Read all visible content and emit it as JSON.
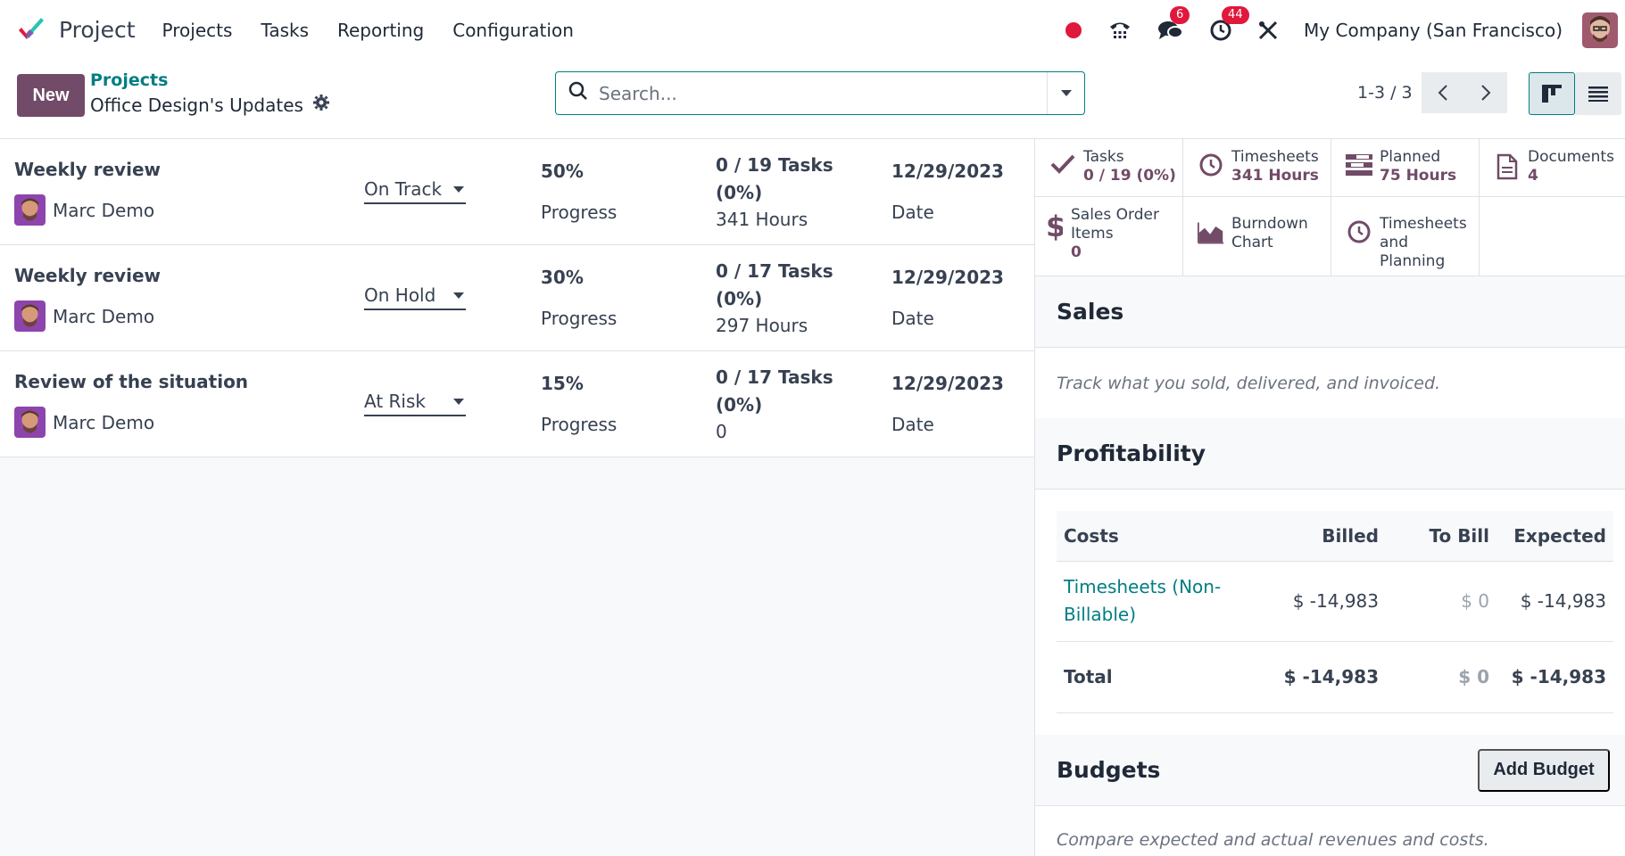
{
  "app": {
    "name": "Project"
  },
  "menu": [
    "Projects",
    "Tasks",
    "Reporting",
    "Configuration"
  ],
  "systray": {
    "messages_count": "6",
    "activities_count": "44",
    "company": "My Company (San Francisco)"
  },
  "control": {
    "new_label": "New",
    "breadcrumb_parent": "Projects",
    "breadcrumb_current": "Office Design's Updates",
    "search_placeholder": "Search...",
    "pager": "1-3 / 3"
  },
  "updates": [
    {
      "name": "Weekly review",
      "user": "Marc Demo",
      "status": "On Track",
      "progress": "50%",
      "progress_label": "Progress",
      "tasks": "0 / 19 Tasks (0%)",
      "hours": "341 Hours",
      "date": "12/29/2023",
      "date_label": "Date"
    },
    {
      "name": "Weekly review",
      "user": "Marc Demo",
      "status": "On Hold",
      "progress": "30%",
      "progress_label": "Progress",
      "tasks": "0 / 17 Tasks (0%)",
      "hours": "297 Hours",
      "date": "12/29/2023",
      "date_label": "Date"
    },
    {
      "name": "Review of the situation",
      "user": "Marc Demo",
      "status": "At Risk",
      "progress": "15%",
      "progress_label": "Progress",
      "tasks": "0 / 17 Tasks (0%)",
      "hours": "0",
      "date": "12/29/2023",
      "date_label": "Date"
    }
  ],
  "stats": {
    "tasks": {
      "label": "Tasks",
      "value": "0 / 19 (0%)"
    },
    "timesheets": {
      "label": "Timesheets",
      "value": "341 Hours"
    },
    "planned": {
      "label": "Planned",
      "value": "75 Hours"
    },
    "documents": {
      "label": "Documents",
      "value": "4"
    },
    "sales_order_items": {
      "label_1": "Sales Order",
      "label_2": "Items",
      "value": "0"
    },
    "burndown": {
      "label_1": "Burndown",
      "label_2": "Chart"
    },
    "timesheets_planning": {
      "label_1": "Timesheets",
      "label_2": "and Planning"
    }
  },
  "sales": {
    "title": "Sales",
    "hint": "Track what you sold, delivered, and invoiced."
  },
  "profitability": {
    "title": "Profitability",
    "columns": [
      "Costs",
      "Billed",
      "To Bill",
      "Expected"
    ],
    "rows": [
      {
        "label_1": "Timesheets (Non-",
        "label_2": "Billable)",
        "billed": "$ -14,983",
        "to_bill": "$ 0",
        "expected": "$ -14,983"
      }
    ],
    "total": {
      "label": "Total",
      "billed": "$ -14,983",
      "to_bill": "$ 0",
      "expected": "$ -14,983"
    }
  },
  "budgets": {
    "title": "Budgets",
    "add_label": "Add Budget",
    "hint": "Compare expected and actual revenues and costs."
  },
  "colors": {
    "brand": "#714b67",
    "link": "#017e84",
    "danger": "#e0183c"
  }
}
